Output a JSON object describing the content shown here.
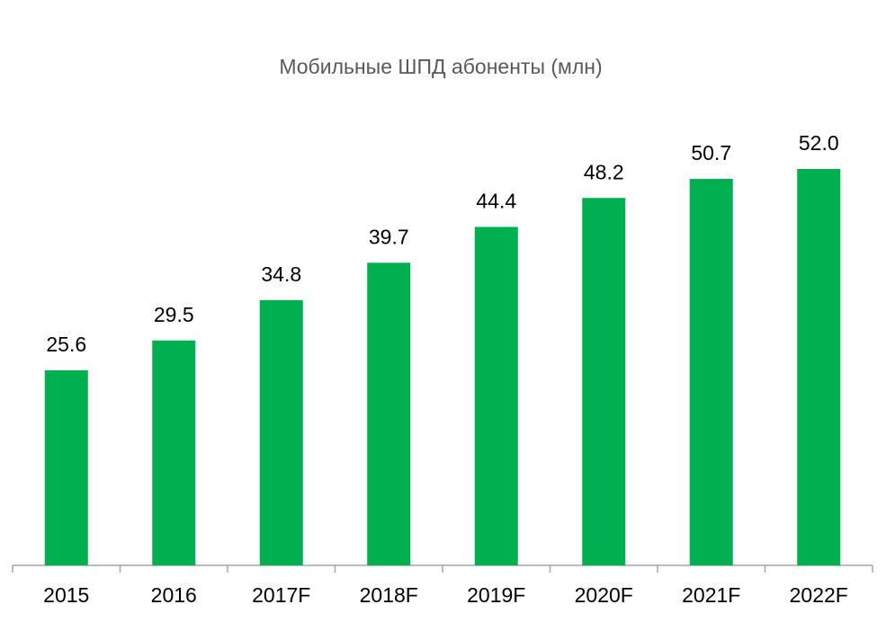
{
  "chart_data": {
    "type": "bar",
    "title": "Мобильные ШПД абоненты (млн)",
    "categories": [
      "2015",
      "2016",
      "2017F",
      "2018F",
      "2019F",
      "2020F",
      "2021F",
      "2022F"
    ],
    "values": [
      25.6,
      29.5,
      34.8,
      39.7,
      44.4,
      48.2,
      50.7,
      52.0
    ],
    "value_labels": [
      "25.6",
      "29.5",
      "34.8",
      "39.7",
      "44.4",
      "48.2",
      "50.7",
      "52.0"
    ],
    "color": "#00b050"
  }
}
